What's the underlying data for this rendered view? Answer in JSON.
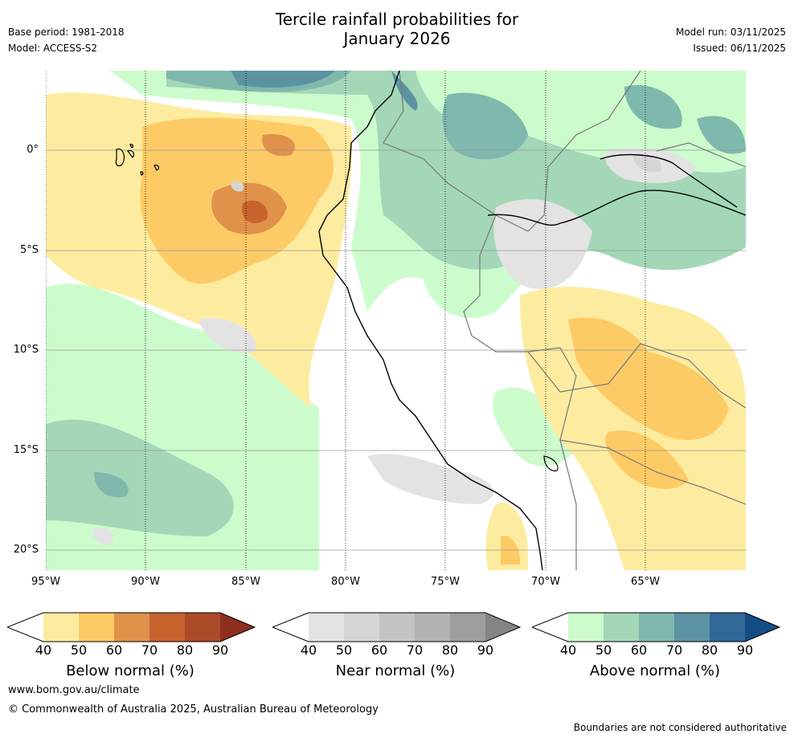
{
  "header": {
    "title_line1": "Tercile rainfall probabilities for",
    "title_line2": "January 2026",
    "base_period": "Base period: 1981-2018",
    "model": "Model: ACCESS-S2",
    "model_run": "Model run: 03/11/2025",
    "issued": "Issued: 06/11/2025"
  },
  "map": {
    "lat_labels": [
      "0°",
      "5°S",
      "10°S",
      "15°S",
      "20°S"
    ],
    "lon_labels": [
      "95°W",
      "90°W",
      "85°W",
      "80°W",
      "75°W",
      "70°W",
      "65°W"
    ]
  },
  "colorbars": [
    {
      "title": "Below normal (%)",
      "ticks": [
        "40",
        "50",
        "60",
        "70",
        "80",
        "90"
      ],
      "colors": [
        "#ffffff",
        "#fdeca0",
        "#fdcb66",
        "#e0924a",
        "#c8632e",
        "#ab4a27",
        "#8e2f1e"
      ]
    },
    {
      "title": "Near normal (%)",
      "ticks": [
        "40",
        "50",
        "60",
        "70",
        "80",
        "90"
      ],
      "colors": [
        "#ffffff",
        "#e3e3e3",
        "#d5d5d5",
        "#c4c4c4",
        "#b2b2b2",
        "#9e9e9e",
        "#848484"
      ]
    },
    {
      "title": "Above normal (%)",
      "ticks": [
        "40",
        "50",
        "60",
        "70",
        "80",
        "90"
      ],
      "colors": [
        "#ffffff",
        "#ccfccc",
        "#a3d7b8",
        "#7fb8ad",
        "#5b93a3",
        "#306898",
        "#154c83"
      ]
    }
  ],
  "footer": {
    "website": "www.bom.gov.au/climate",
    "copyright": "© Commonwealth of Australia 2025, Australian Bureau of Meteorology",
    "disclaimer": "Boundaries are not considered authoritative"
  }
}
